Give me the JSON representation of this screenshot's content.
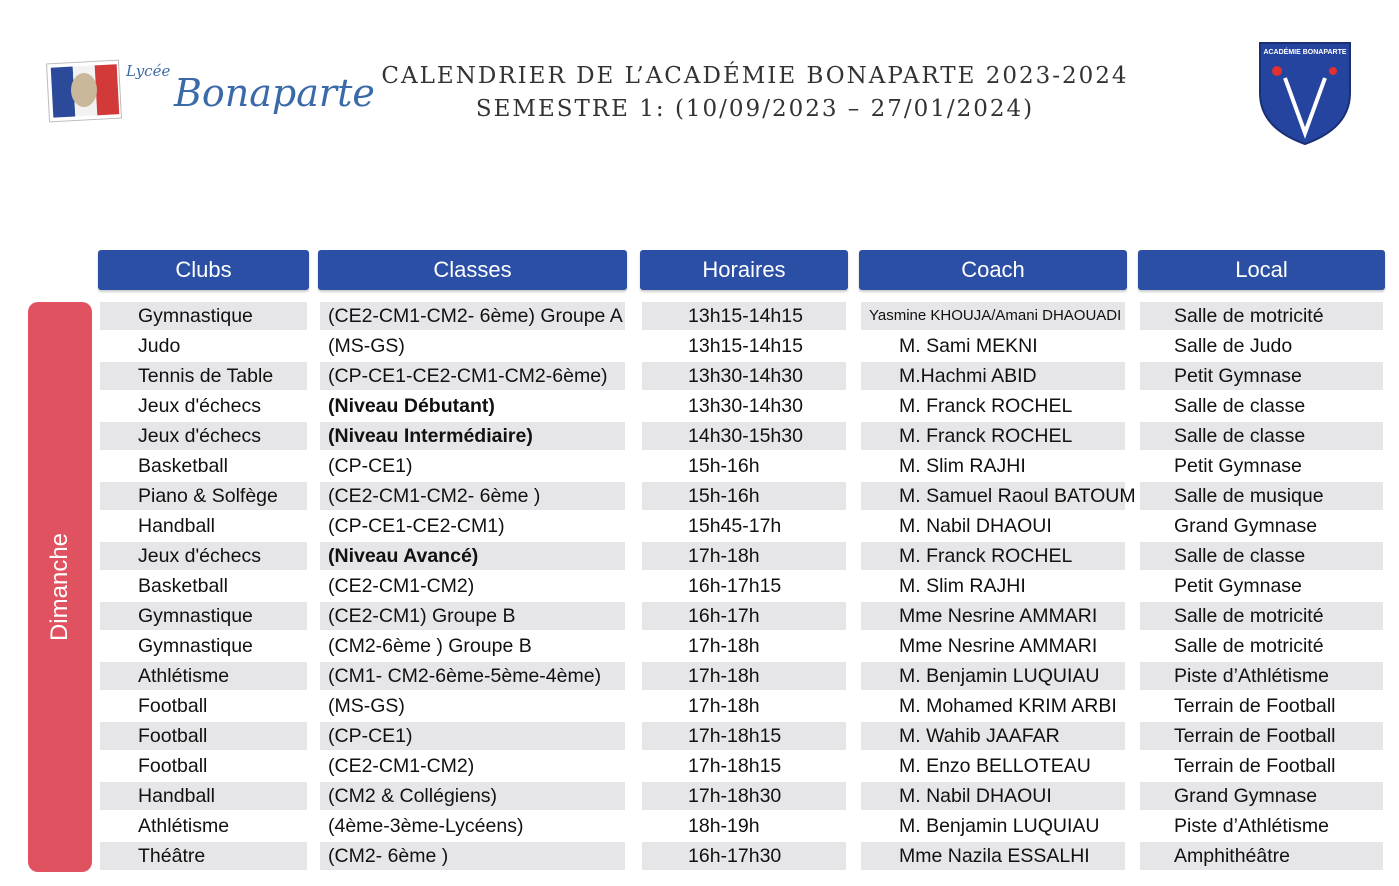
{
  "header": {
    "logo_small": "Lycée",
    "logo_name": "Bonaparte",
    "title_line1": "CALENDRIER DE L’ACADÉMIE BONAPARTE 2023-2024",
    "title_line2": "SEMESTRE 1: (10/09/2023 – 27/01/2024)",
    "badge": "ACADÉMIE BONAPARTE"
  },
  "table": {
    "headers": [
      "Clubs",
      "Classes",
      "Horaires",
      "Coach",
      "Local"
    ],
    "day": "Dimanche",
    "rows": [
      [
        "Gymnastique",
        "(CE2-CM1-CM2- 6ème) Groupe A",
        "13h15-14h15",
        "Yasmine KHOUJA/Amani DHAOUADI",
        "Salle de motricité"
      ],
      [
        "Judo",
        "(MS-GS)",
        "13h15-14h15",
        "M. Sami MEKNI",
        "Salle de Judo"
      ],
      [
        "Tennis de Table",
        "(CP-CE1-CE2-CM1-CM2-6ème)",
        "13h30-14h30",
        "M.Hachmi ABID",
        "Petit Gymnase"
      ],
      [
        "Jeux d'échecs",
        "(Niveau Débutant)",
        "13h30-14h30",
        "M. Franck ROCHEL",
        "Salle de classe"
      ],
      [
        "Jeux d'échecs",
        "(Niveau Intermédiaire)",
        "14h30-15h30",
        "M. Franck ROCHEL",
        "Salle de classe"
      ],
      [
        "Basketball",
        "(CP-CE1)",
        "15h-16h",
        "M. Slim RAJHI",
        "Petit Gymnase"
      ],
      [
        "Piano & Solfège",
        "(CE2-CM1-CM2- 6ème )",
        "15h-16h",
        "M. Samuel Raoul  BATOUM",
        "Salle de musique"
      ],
      [
        "Handball",
        "(CP-CE1-CE2-CM1)",
        "15h45-17h",
        "M. Nabil DHAOUI",
        "Grand Gymnase"
      ],
      [
        "Jeux d'échecs",
        "(Niveau Avancé)",
        "17h-18h",
        "M. Franck ROCHEL",
        "Salle de classe"
      ],
      [
        "Basketball",
        "(CE2-CM1-CM2)",
        "16h-17h15",
        "M. Slim RAJHI",
        "Petit Gymnase"
      ],
      [
        "Gymnastique",
        "(CE2-CM1) Groupe B",
        "16h-17h",
        "Mme Nesrine AMMARI",
        "Salle de motricité"
      ],
      [
        "Gymnastique",
        "(CM2-6ème ) Groupe B",
        "17h-18h",
        "Mme Nesrine AMMARI",
        "Salle de motricité"
      ],
      [
        "Athlétisme",
        "(CM1- CM2-6ème-5ème-4ème)",
        "17h-18h",
        "M. Benjamin LUQUIAU",
        "Piste d’Athlétisme"
      ],
      [
        "Football",
        "(MS-GS)",
        "17h-18h",
        "M. Mohamed KRIM ARBI",
        "Terrain de Football"
      ],
      [
        "Football",
        "(CP-CE1)",
        "17h-18h15",
        "M. Wahib JAAFAR",
        "Terrain de Football"
      ],
      [
        "Football",
        "(CE2-CM1-CM2)",
        "17h-18h15",
        "M. Enzo BELLOTEAU",
        "Terrain de Football"
      ],
      [
        "Handball",
        "(CM2 & Collégiens)",
        "17h-18h30",
        "M. Nabil DHAOUI",
        "Grand Gymnase"
      ],
      [
        "Athlétisme",
        "(4ème-3ème-Lycéens)",
        "18h-19h",
        "M. Benjamin LUQUIAU",
        "Piste d’Athlétisme"
      ],
      [
        "Théâtre",
        "(CM2- 6ème )",
        "16h-17h30",
        "Mme Nazila ESSALHI",
        "Amphithéâtre"
      ]
    ]
  }
}
